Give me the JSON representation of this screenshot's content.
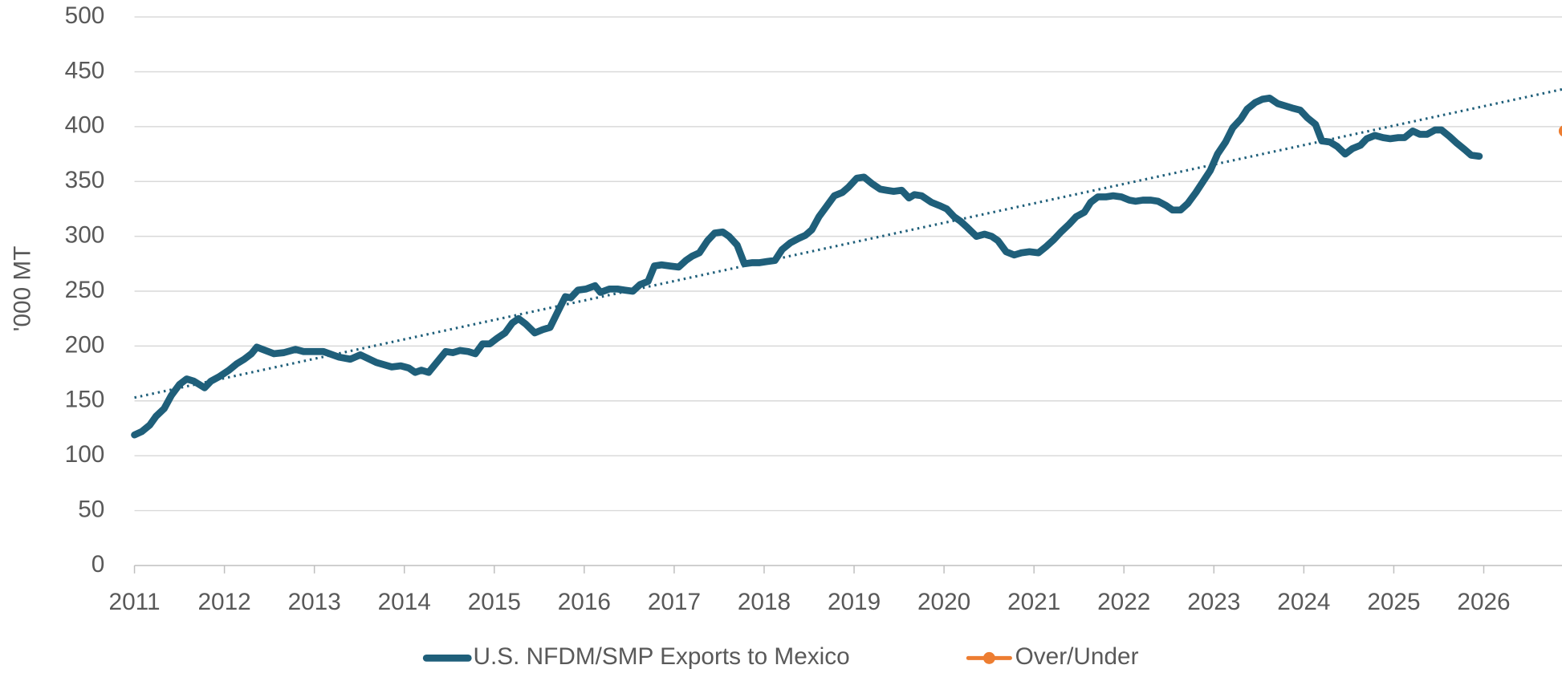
{
  "chart_data": {
    "type": "line",
    "y_label": "'000 MT",
    "xlim": [
      2011,
      2026.87
    ],
    "xticks": [
      2011,
      2012,
      2013,
      2014,
      2015,
      2016,
      2017,
      2018,
      2019,
      2020,
      2021,
      2022,
      2023,
      2024,
      2025,
      2026
    ],
    "ylim": [
      0,
      500
    ],
    "yticks": [
      0,
      50,
      100,
      150,
      200,
      250,
      300,
      350,
      400,
      450,
      500
    ],
    "grid": true,
    "legend": "bottom",
    "series": [
      {
        "name": "U.S. NFDM/SMP Exports to Mexico",
        "color": "#1f5f7a",
        "x": [
          2011.0,
          2011.08,
          2011.17,
          2011.24,
          2011.33,
          2011.41,
          2011.5,
          2011.58,
          2011.66,
          2011.78,
          2011.85,
          2011.94,
          2012.05,
          2012.14,
          2012.22,
          2012.3,
          2012.36,
          2012.55,
          2012.66,
          2012.79,
          2012.88,
          2013.1,
          2013.27,
          2013.4,
          2013.51,
          2013.69,
          2013.86,
          2013.96,
          2014.05,
          2014.12,
          2014.19,
          2014.27,
          2014.35,
          2014.46,
          2014.54,
          2014.62,
          2014.71,
          2014.79,
          2014.87,
          2014.95,
          2015.03,
          2015.12,
          2015.2,
          2015.27,
          2015.35,
          2015.45,
          2015.54,
          2015.62,
          2015.71,
          2015.79,
          2015.85,
          2015.93,
          2016.02,
          2016.12,
          2016.18,
          2016.28,
          2016.37,
          2016.45,
          2016.54,
          2016.62,
          2016.71,
          2016.78,
          2016.86,
          2016.95,
          2017.05,
          2017.13,
          2017.2,
          2017.28,
          2017.37,
          2017.45,
          2017.54,
          2017.61,
          2017.7,
          2017.78,
          2017.87,
          2017.95,
          2018.03,
          2018.12,
          2018.2,
          2018.29,
          2018.38,
          2018.46,
          2018.53,
          2018.61,
          2018.7,
          2018.78,
          2018.87,
          2018.94,
          2019.03,
          2019.11,
          2019.2,
          2019.29,
          2019.36,
          2019.44,
          2019.53,
          2019.61,
          2019.67,
          2019.75,
          2019.86,
          2019.95,
          2020.03,
          2020.11,
          2020.18,
          2020.26,
          2020.36,
          2020.45,
          2020.53,
          2020.6,
          2020.69,
          2020.78,
          2020.86,
          2020.95,
          2021.05,
          2021.14,
          2021.22,
          2021.3,
          2021.39,
          2021.47,
          2021.56,
          2021.63,
          2021.71,
          2021.8,
          2021.88,
          2021.97,
          2022.06,
          2022.13,
          2022.21,
          2022.3,
          2022.38,
          2022.47,
          2022.54,
          2022.63,
          2022.71,
          2022.8,
          2022.88,
          2022.96,
          2023.04,
          2023.13,
          2023.21,
          2023.3,
          2023.37,
          2023.46,
          2023.54,
          2023.62,
          2023.71,
          2023.79,
          2023.87,
          2023.96,
          2024.04,
          2024.13,
          2024.2,
          2024.29,
          2024.37,
          2024.46,
          2024.54,
          2024.63,
          2024.7,
          2024.79,
          2024.88,
          2024.96,
          2025.05,
          2025.12,
          2025.21,
          2025.29,
          2025.37,
          2025.46,
          2025.53,
          2025.62,
          2025.7,
          2025.79,
          2025.86,
          2025.95
        ],
        "values": [
          119,
          122,
          128,
          136,
          143,
          155,
          165,
          170,
          168,
          162,
          168,
          172,
          178,
          184,
          188,
          193,
          199,
          193,
          194,
          197,
          195,
          195,
          190,
          188,
          192,
          185,
          181,
          182,
          180,
          176,
          178,
          176,
          184,
          195,
          194,
          196,
          195,
          193,
          202,
          202,
          207,
          212,
          221,
          225,
          220,
          212,
          215,
          217,
          232,
          245,
          244,
          251,
          252,
          255,
          249,
          252,
          252,
          251,
          250,
          256,
          259,
          273,
          274,
          273,
          272,
          278,
          282,
          285,
          296,
          303,
          304,
          300,
          292,
          275,
          276,
          276,
          277,
          278,
          288,
          294,
          298,
          301,
          306,
          318,
          328,
          337,
          340,
          345,
          353,
          354,
          348,
          343,
          342,
          341,
          342,
          335,
          338,
          337,
          331,
          328,
          325,
          318,
          314,
          308,
          300,
          302,
          300,
          296,
          286,
          283,
          285,
          286,
          285,
          291,
          297,
          304,
          311,
          318,
          322,
          331,
          336,
          336,
          337,
          336,
          333,
          332,
          333,
          333,
          332,
          328,
          324,
          324,
          330,
          340,
          350,
          360,
          375,
          386,
          399,
          407,
          416,
          422,
          425,
          426,
          421,
          419,
          417,
          415,
          408,
          402,
          387,
          386,
          382,
          375,
          380,
          383,
          389,
          392,
          390,
          389,
          390,
          390,
          396,
          393,
          393,
          397,
          397,
          391,
          385,
          379,
          374,
          373
        ]
      },
      {
        "name": "Over/Under",
        "color": "#ed7d31",
        "x": [
          2026.9
        ],
        "values": [
          396
        ]
      }
    ],
    "trendline": {
      "color": "#1f5f7a",
      "style": "dotted",
      "x": [
        2011,
        2026.87
      ],
      "values": [
        153,
        434
      ]
    }
  }
}
